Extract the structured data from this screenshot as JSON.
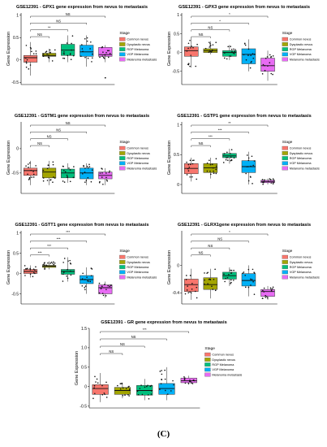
{
  "legend_title": "Stage",
  "legend_items": [
    "Common nevus",
    "Dysplastic nevus",
    "RGP Melanoma",
    "VGP Melanoma",
    "Melanoma metastasis"
  ],
  "colors": [
    "#f8766d",
    "#a3a500",
    "#00bf7d",
    "#00b0f6",
    "#e76bf3"
  ],
  "panel_label": "(C)",
  "chart_data": [
    {
      "type": "box",
      "title": "GSE12391 - GPX1 gene expression from nevus to metastasis",
      "ylabel": "Gene Expression",
      "ylim": [
        -0.55,
        1.05
      ],
      "yticks": [
        -0.5,
        0,
        0.5,
        1
      ],
      "ytick_labels": [
        "-0.5",
        "0",
        "0.5",
        "1"
      ],
      "groups": [
        "Common nevus",
        "Dysplastic nevus",
        "RGP Melanoma",
        "VGP Melanoma",
        "Melanoma metastasis"
      ],
      "boxes": [
        {
          "min": -0.35,
          "q1": -0.05,
          "median": 0.05,
          "q3": 0.1,
          "max": 0.4
        },
        {
          "min": -0.05,
          "q1": 0.08,
          "median": 0.1,
          "q3": 0.15,
          "max": 0.25
        },
        {
          "min": -0.05,
          "q1": 0.1,
          "median": 0.22,
          "q3": 0.35,
          "max": 0.55
        },
        {
          "min": -0.15,
          "q1": 0.08,
          "median": 0.18,
          "q3": 0.33,
          "max": 0.55
        },
        {
          "min": -0.05,
          "q1": 0.08,
          "median": 0.12,
          "q3": 0.28,
          "max": 0.33
        }
      ],
      "outliers": [
        {
          "group": 4,
          "y": -0.4
        }
      ],
      "comparisons": [
        {
          "from": 0,
          "to": 4,
          "label": "NS"
        },
        {
          "from": 0,
          "to": 3,
          "label": "NS"
        },
        {
          "from": 0,
          "to": 2,
          "label": "**"
        },
        {
          "from": 0,
          "to": 1,
          "label": "NS"
        }
      ]
    },
    {
      "type": "box",
      "title": "GSE12391 - GPX3 gene expression from nevus to metastasis",
      "ylabel": "Gene Expression",
      "ylim": [
        -0.85,
        1.05
      ],
      "yticks": [
        -0.5,
        0,
        0.5,
        1
      ],
      "ytick_labels": [
        "-0.5",
        "0",
        "0.5",
        "1"
      ],
      "groups": [
        "Common nevus",
        "Dysplastic nevus",
        "RGP Melanoma",
        "VGP Melanoma",
        "Melanoma metastasis"
      ],
      "boxes": [
        {
          "min": -0.4,
          "q1": -0.1,
          "median": 0.05,
          "q3": 0.15,
          "max": 0.4
        },
        {
          "min": -0.05,
          "q1": 0.0,
          "median": 0.05,
          "q3": 0.1,
          "max": 0.3
        },
        {
          "min": -0.2,
          "q1": -0.1,
          "median": 0.0,
          "q3": 0.05,
          "max": 0.2
        },
        {
          "min": -0.5,
          "q1": -0.3,
          "median": -0.05,
          "q3": 0.1,
          "max": 0.35
        },
        {
          "min": -0.75,
          "q1": -0.5,
          "median": -0.35,
          "q3": -0.15,
          "max": 0.05
        }
      ],
      "outliers": [],
      "comparisons": [
        {
          "from": 0,
          "to": 4,
          "label": "*"
        },
        {
          "from": 0,
          "to": 3,
          "label": "*"
        },
        {
          "from": 0,
          "to": 2,
          "label": "NS"
        },
        {
          "from": 0,
          "to": 1,
          "label": "NS"
        }
      ]
    },
    {
      "type": "box",
      "title": "GSE12391 - GSTM1 gene expression from nevus to metastasis",
      "ylabel": "Gene Expression",
      "ylim": [
        -0.92,
        0.55
      ],
      "yticks": [
        -0.5,
        0
      ],
      "ytick_labels": [
        "-0.5",
        "0"
      ],
      "groups": [
        "Common nevus",
        "Dysplastic nevus",
        "RGP Melanoma",
        "VGP Melanoma",
        "Melanoma metastasis"
      ],
      "boxes": [
        {
          "min": -0.75,
          "q1": -0.55,
          "median": -0.45,
          "q3": -0.4,
          "max": -0.25
        },
        {
          "min": -0.75,
          "q1": -0.6,
          "median": -0.48,
          "q3": -0.4,
          "max": -0.25
        },
        {
          "min": -0.7,
          "q1": -0.6,
          "median": -0.5,
          "q3": -0.42,
          "max": -0.3
        },
        {
          "min": -0.75,
          "q1": -0.62,
          "median": -0.5,
          "q3": -0.4,
          "max": -0.3
        },
        {
          "min": -0.75,
          "q1": -0.62,
          "median": -0.55,
          "q3": -0.48,
          "max": -0.4
        }
      ],
      "outliers": [],
      "comparisons": [
        {
          "from": 0,
          "to": 4,
          "label": "NS"
        },
        {
          "from": 0,
          "to": 3,
          "label": "NS"
        },
        {
          "from": 0,
          "to": 2,
          "label": "NS"
        },
        {
          "from": 0,
          "to": 1,
          "label": "NS"
        }
      ]
    },
    {
      "type": "box",
      "title": "GSE12391 - GSTP1 gene expression from nevus to metastasis",
      "ylabel": "Gene Expression",
      "ylim": [
        -0.15,
        1.05
      ],
      "yticks": [
        0,
        0.5,
        1
      ],
      "ytick_labels": [
        "0",
        "0.5",
        "1"
      ],
      "groups": [
        "Common nevus",
        "Dysplastic nevus",
        "RGP Melanoma",
        "VGP Melanoma",
        "Melanoma metastasis"
      ],
      "boxes": [
        {
          "min": 0.05,
          "q1": 0.18,
          "median": 0.27,
          "q3": 0.35,
          "max": 0.45
        },
        {
          "min": 0.1,
          "q1": 0.2,
          "median": 0.28,
          "q3": 0.35,
          "max": 0.45
        },
        {
          "min": 0.35,
          "q1": 0.45,
          "median": 0.48,
          "q3": 0.52,
          "max": 0.6
        },
        {
          "min": 0.0,
          "q1": 0.2,
          "median": 0.3,
          "q3": 0.4,
          "max": 0.55
        },
        {
          "min": 0.0,
          "q1": 0.03,
          "median": 0.05,
          "q3": 0.07,
          "max": 0.1
        }
      ],
      "outliers": [],
      "comparisons": [
        {
          "from": 0,
          "to": 4,
          "label": "**"
        },
        {
          "from": 0,
          "to": 3,
          "label": "***"
        },
        {
          "from": 0,
          "to": 2,
          "label": "***"
        },
        {
          "from": 0,
          "to": 1,
          "label": "NS"
        }
      ]
    },
    {
      "type": "box",
      "title": "GSE12391 - GSTT1 gene expression from nevus to metastasis",
      "ylabel": "Gene Expression",
      "ylim": [
        -0.75,
        1.05
      ],
      "yticks": [
        -0.5,
        0,
        0.5,
        1
      ],
      "ytick_labels": [
        "-0.5",
        "0",
        "0.5",
        "1"
      ],
      "groups": [
        "Common nevus",
        "Dysplastic nevus",
        "RGP Melanoma",
        "VGP Melanoma",
        "Melanoma metastasis"
      ],
      "boxes": [
        {
          "min": -0.1,
          "q1": 0.0,
          "median": 0.05,
          "q3": 0.1,
          "max": 0.2
        },
        {
          "min": 0.1,
          "q1": 0.15,
          "median": 0.18,
          "q3": 0.2,
          "max": 0.3
        },
        {
          "min": -0.2,
          "q1": -0.02,
          "median": 0.05,
          "q3": 0.1,
          "max": 0.4
        },
        {
          "min": -0.5,
          "q1": -0.25,
          "median": -0.15,
          "q3": -0.05,
          "max": 0.15
        },
        {
          "min": -0.6,
          "q1": -0.5,
          "median": -0.35,
          "q3": -0.28,
          "max": -0.2
        }
      ],
      "outliers": [],
      "comparisons": [
        {
          "from": 0,
          "to": 4,
          "label": "***"
        },
        {
          "from": 0,
          "to": 3,
          "label": "***"
        },
        {
          "from": 0,
          "to": 2,
          "label": "***"
        },
        {
          "from": 0,
          "to": 1,
          "label": "***"
        }
      ]
    },
    {
      "type": "box",
      "title": "GSE12391 - GLRX1gene expression from nevus to metastasis",
      "ylabel": "Gene Expression",
      "ylim": [
        -0.56,
        0.5
      ],
      "yticks": [
        -0.4,
        0
      ],
      "ytick_labels": [
        "-0.4",
        "0"
      ],
      "groups": [
        "Common nevus",
        "Dysplastic nevus",
        "RGP Melanoma",
        "VGP Melanoma",
        "Melanoma metastasis"
      ],
      "boxes": [
        {
          "min": -0.5,
          "q1": -0.38,
          "median": -0.28,
          "q3": -0.2,
          "max": -0.05
        },
        {
          "min": -0.48,
          "q1": -0.35,
          "median": -0.28,
          "q3": -0.18,
          "max": -0.05
        },
        {
          "min": -0.3,
          "q1": -0.2,
          "median": -0.15,
          "q3": -0.1,
          "max": -0.03
        },
        {
          "min": -0.45,
          "q1": -0.3,
          "median": -0.22,
          "q3": -0.12,
          "max": 0.0
        },
        {
          "min": -0.5,
          "q1": -0.45,
          "median": -0.38,
          "q3": -0.35,
          "max": -0.3
        }
      ],
      "outliers": [],
      "comparisons": [
        {
          "from": 0,
          "to": 4,
          "label": "*"
        },
        {
          "from": 0,
          "to": 3,
          "label": "NS"
        },
        {
          "from": 0,
          "to": 2,
          "label": "NS"
        },
        {
          "from": 0,
          "to": 1,
          "label": "NS"
        }
      ]
    },
    {
      "type": "box",
      "title": "GSE12391 - GR gene expression from nevus to metastasis",
      "ylabel": "Gene Expression",
      "ylim": [
        -0.55,
        1.5
      ],
      "yticks": [
        -0.5,
        0,
        0.5,
        1,
        1.5
      ],
      "ytick_labels": [
        "-0.5",
        "0",
        "0.5",
        "1.0",
        "1.5"
      ],
      "groups": [
        "Common nevus",
        "Dysplastic nevus",
        "RGP Melanoma",
        "VGP Melanoma",
        "Melanoma metastasis"
      ],
      "boxes": [
        {
          "min": -0.4,
          "q1": -0.2,
          "median": -0.05,
          "q3": 0.05,
          "max": 0.35
        },
        {
          "min": -0.3,
          "q1": -0.2,
          "median": -0.1,
          "q3": -0.02,
          "max": 0.1
        },
        {
          "min": -0.35,
          "q1": -0.22,
          "median": -0.1,
          "q3": 0.03,
          "max": 0.2
        },
        {
          "min": -0.35,
          "q1": -0.2,
          "median": -0.05,
          "q3": 0.08,
          "max": 0.5
        },
        {
          "min": 0.05,
          "q1": 0.1,
          "median": 0.15,
          "q3": 0.22,
          "max": 0.28
        }
      ],
      "outliers": [],
      "comparisons": [
        {
          "from": 0,
          "to": 4,
          "label": "***"
        },
        {
          "from": 0,
          "to": 3,
          "label": "NS"
        },
        {
          "from": 0,
          "to": 2,
          "label": "NS"
        },
        {
          "from": 0,
          "to": 1,
          "label": "NS"
        }
      ]
    }
  ]
}
